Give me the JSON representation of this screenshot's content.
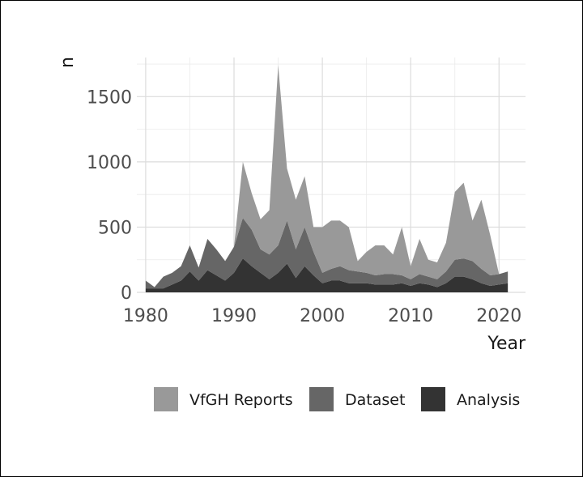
{
  "chart_data": {
    "type": "area",
    "stacked": true,
    "xlabel": "Year",
    "ylabel": "n",
    "xlim": [
      1979,
      2023
    ],
    "ylim": [
      0,
      1800
    ],
    "xticks": [
      1980,
      1990,
      2000,
      2010,
      2020
    ],
    "yticks": [
      0,
      500,
      1000,
      1500
    ],
    "grid": true,
    "legend_position": "bottom",
    "x": [
      1980,
      1981,
      1982,
      1983,
      1984,
      1985,
      1986,
      1987,
      1988,
      1989,
      1990,
      1991,
      1992,
      1993,
      1994,
      1995,
      1996,
      1997,
      1998,
      1999,
      2000,
      2001,
      2002,
      2003,
      2004,
      2005,
      2006,
      2007,
      2008,
      2009,
      2010,
      2011,
      2012,
      2013,
      2014,
      2015,
      2016,
      2017,
      2018,
      2019,
      2020,
      2021
    ],
    "series": [
      {
        "name": "Analysis",
        "color": "#333333",
        "values": [
          30,
          30,
          30,
          60,
          90,
          160,
          90,
          170,
          130,
          90,
          150,
          260,
          200,
          150,
          100,
          150,
          220,
          110,
          200,
          130,
          70,
          90,
          90,
          70,
          70,
          70,
          60,
          60,
          60,
          70,
          50,
          70,
          60,
          40,
          70,
          120,
          120,
          100,
          70,
          50,
          60,
          70
        ]
      },
      {
        "name": "Dataset",
        "color": "#666666",
        "values": [
          60,
          10,
          90,
          90,
          110,
          200,
          100,
          240,
          200,
          150,
          200,
          310,
          280,
          180,
          190,
          210,
          330,
          220,
          300,
          180,
          80,
          90,
          110,
          100,
          90,
          80,
          70,
          80,
          80,
          60,
          50,
          70,
          60,
          60,
          90,
          130,
          140,
          140,
          110,
          80,
          80,
          90
        ]
      },
      {
        "name": "VfGH Reports",
        "color": "#999999",
        "values": [
          0,
          0,
          0,
          0,
          0,
          0,
          0,
          0,
          0,
          0,
          0,
          430,
          280,
          230,
          340,
          1380,
          400,
          380,
          390,
          190,
          350,
          370,
          350,
          330,
          80,
          160,
          230,
          220,
          150,
          370,
          100,
          270,
          130,
          130,
          220,
          520,
          580,
          310,
          530,
          310,
          0,
          0
        ]
      }
    ]
  }
}
